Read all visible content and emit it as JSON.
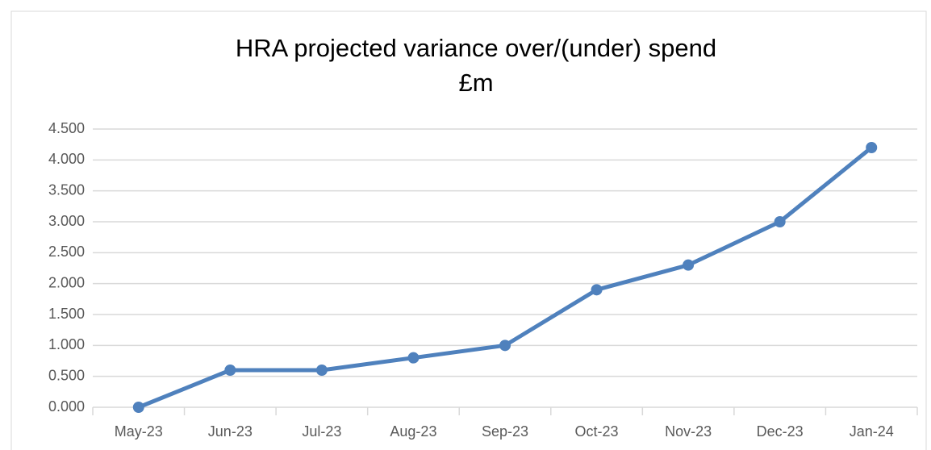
{
  "chart_data": {
    "type": "line",
    "title": [
      "HRA projected variance over/(under) spend",
      "£m"
    ],
    "categories": [
      "May-23",
      "Jun-23",
      "Jul-23",
      "Aug-23",
      "Sep-23",
      "Oct-23",
      "Nov-23",
      "Dec-23",
      "Jan-24"
    ],
    "series": [
      {
        "name": "HRA projected variance",
        "color": "#4f81bd",
        "values": [
          0,
          0.6,
          0.6,
          0.8,
          1.0,
          1.9,
          2.3,
          3.0,
          4.2
        ]
      }
    ],
    "ylim": [
      0,
      4.5
    ],
    "yticks": [
      {
        "value": 0,
        "label": "0.000"
      },
      {
        "value": 0.5,
        "label": "0.500"
      },
      {
        "value": 1,
        "label": "1.000"
      },
      {
        "value": 1.5,
        "label": "1.500"
      },
      {
        "value": 2,
        "label": "2.000"
      },
      {
        "value": 2.5,
        "label": "2.500"
      },
      {
        "value": 3,
        "label": "3.000"
      },
      {
        "value": 3.5,
        "label": "3.500"
      },
      {
        "value": 4,
        "label": "4.000"
      },
      {
        "value": 4.5,
        "label": "4.500"
      }
    ],
    "grid": true
  }
}
